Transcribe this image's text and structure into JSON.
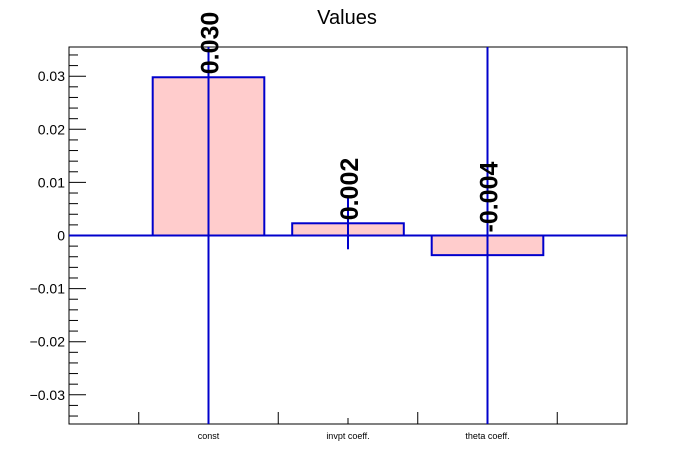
{
  "chart_data": {
    "type": "bar",
    "title": "Values",
    "categories": [
      "const",
      "invpt coeff.",
      "theta coeff."
    ],
    "values": [
      0.0298,
      0.0023,
      -0.0037
    ],
    "errors": [
      1.0,
      0.0049,
      1.0
    ],
    "data_labels": [
      "0.030",
      "0.002",
      "-0.004"
    ],
    "ylim": [
      -0.0355,
      0.0355
    ],
    "yticks": [
      -0.03,
      -0.02,
      -0.01,
      0,
      0.01,
      0.02,
      0.03
    ],
    "ytick_labels": [
      "−0.03",
      "−0.02",
      "−0.01",
      "0",
      "0.01",
      "0.02",
      "0.03"
    ],
    "xlabel": "",
    "ylabel": "",
    "grid": false,
    "legend": "none",
    "colors": {
      "bar_fill": "#ffcccc",
      "bar_edge": "#0000cc",
      "error_bar": "#0000cc",
      "zero_line": "#0000cc"
    }
  }
}
